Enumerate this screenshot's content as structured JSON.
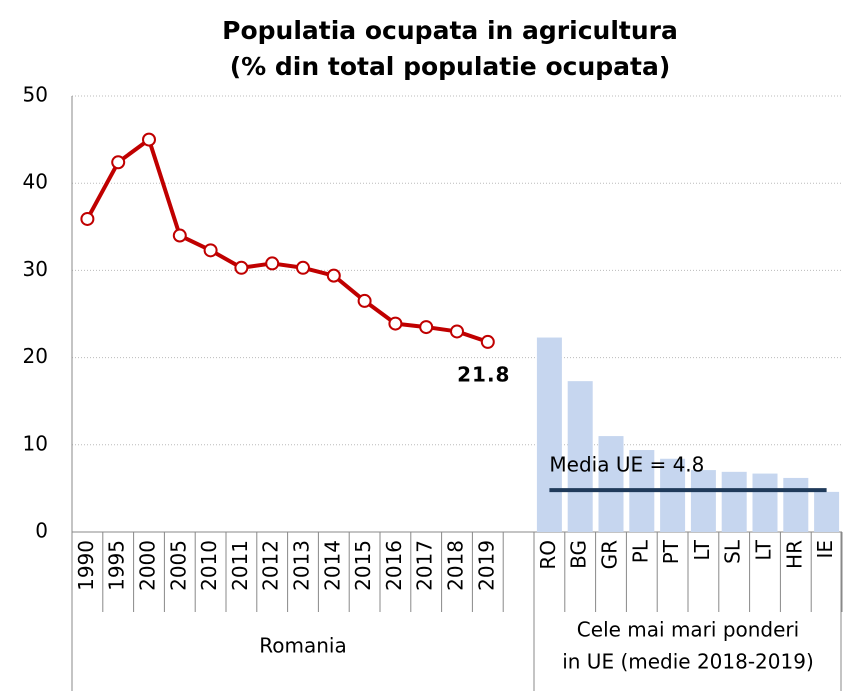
{
  "chart_data": {
    "type": "line-bar",
    "title": "Populatia ocupata in agricultura",
    "subtitle": "(% din total populatie ocupata)",
    "categories": [
      "1990",
      "1995",
      "2000",
      "2005",
      "2010",
      "2011",
      "2012",
      "2013",
      "2014",
      "2015",
      "2016",
      "2017",
      "2018",
      "2019",
      null,
      "RO",
      "BG",
      "GR",
      "PL",
      "PT",
      "LT",
      "SL",
      "LT",
      "HR",
      "IE"
    ],
    "series": [
      {
        "type": "line",
        "color": "#c00000",
        "values": [
          35.9,
          42.4,
          45.0,
          34.0,
          32.3,
          30.3,
          30.8,
          30.3,
          29.4,
          26.5,
          23.9,
          23.5,
          23.0,
          21.8,
          null,
          null,
          null,
          null,
          null,
          null,
          null,
          null,
          null,
          null,
          null
        ]
      },
      {
        "type": "bar",
        "color": "#c6d6ef",
        "values": [
          null,
          null,
          null,
          null,
          null,
          null,
          null,
          null,
          null,
          null,
          null,
          null,
          null,
          null,
          null,
          22.3,
          17.3,
          11.0,
          9.4,
          8.4,
          7.1,
          6.9,
          6.7,
          6.2,
          4.6
        ]
      }
    ],
    "last_label": "21.8",
    "reference_line": {
      "value": 4.8,
      "label": "Media UE = 4.8",
      "color": "#1f3a5a"
    },
    "group_labels": [
      [
        "Romania"
      ],
      [
        "Cele mai mari ponderi",
        "in UE (medie 2018-2019)"
      ]
    ],
    "ylim": [
      0,
      50
    ],
    "yticks": [
      0,
      10,
      20,
      30,
      40,
      50
    ],
    "grid": true
  }
}
